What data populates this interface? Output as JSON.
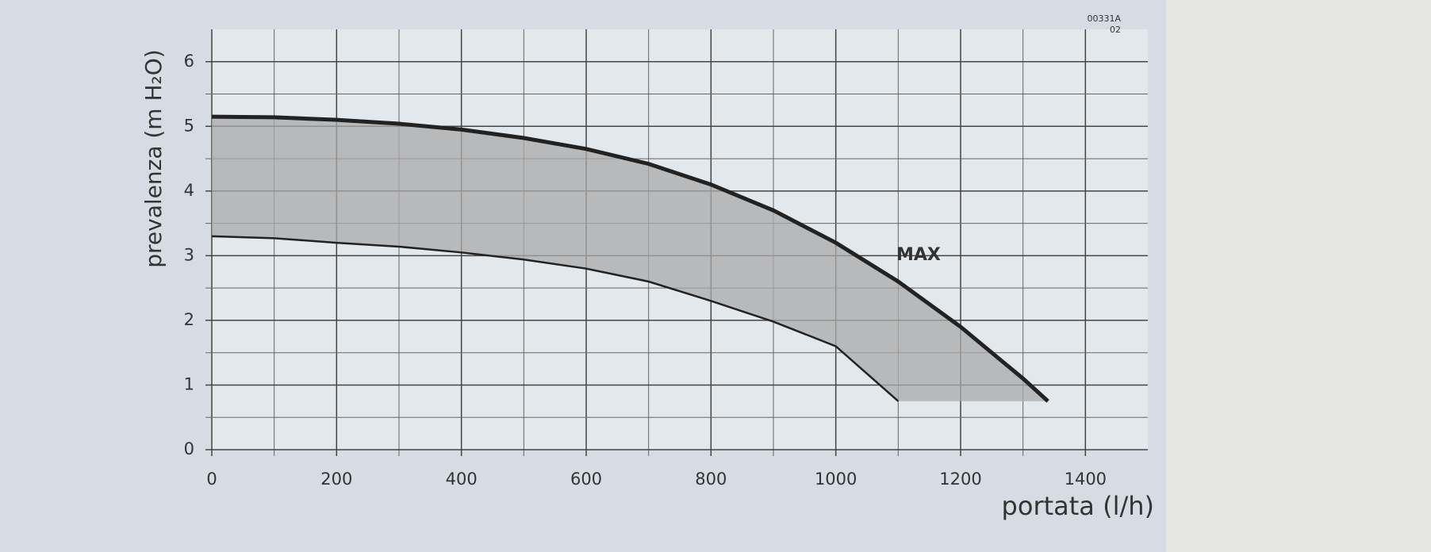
{
  "chart_data": {
    "type": "band",
    "x_label": "portata (l/h)",
    "y_label": "prevalenza (m H₂O)",
    "annotations": [
      "MAX",
      "00331A",
      "02"
    ],
    "series": [
      {
        "name": "MAX",
        "color": "#222222",
        "x": [
          0,
          100,
          200,
          300,
          400,
          500,
          600,
          700,
          800,
          900,
          1000,
          1100,
          1200,
          1300,
          1340
        ],
        "values": [
          5.15,
          5.14,
          5.1,
          5.04,
          4.95,
          4.82,
          4.65,
          4.42,
          4.1,
          3.7,
          3.2,
          2.6,
          1.9,
          1.1,
          0.75
        ]
      },
      {
        "color": "#222222",
        "x": [
          0,
          100,
          200,
          300,
          400,
          500,
          600,
          700,
          800,
          900,
          1000,
          1100
        ],
        "values": [
          3.3,
          3.27,
          3.2,
          3.14,
          3.05,
          2.94,
          2.8,
          2.6,
          2.3,
          1.98,
          1.6,
          0.75
        ]
      }
    ],
    "band_color": "#a9a9a9",
    "xlim": [
      0,
      1500
    ],
    "xticks": [
      0,
      200,
      400,
      600,
      800,
      1000,
      1200,
      1400
    ],
    "ylim": [
      0,
      6.5
    ],
    "yticks": [
      0,
      1,
      2,
      3,
      4,
      5,
      6
    ],
    "grid": true
  }
}
